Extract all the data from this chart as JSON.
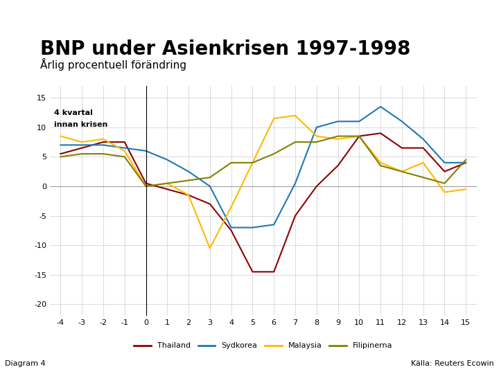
{
  "title": "BNP under Asienkrisen 1997-1998",
  "subtitle": "Årlig procentuell förändring",
  "annotation_line1": "4 kvartal",
  "annotation_line2": "innan krisen",
  "xlim": [
    -4.5,
    15.5
  ],
  "ylim": [
    -22,
    17
  ],
  "xticks": [
    -4,
    -3,
    -2,
    -1,
    0,
    1,
    2,
    3,
    4,
    5,
    6,
    7,
    8,
    9,
    10,
    11,
    12,
    13,
    14,
    15
  ],
  "yticks": [
    -20,
    -15,
    -10,
    -5,
    0,
    5,
    10,
    15
  ],
  "footer_bar_color": "#1a3a8a",
  "footer_left": "Diagram 4",
  "footer_right": "Källa: Reuters Ecowin",
  "logo_color": "#1a3a8a",
  "background_color": "#ffffff",
  "vline_x": 0,
  "legend_labels": [
    "Thailand",
    "Sydkorea",
    "Malaysia",
    "Filipinerna"
  ],
  "series": {
    "Thailand": {
      "color": "#8B0000",
      "x": [
        -4,
        -3,
        -2,
        -1,
        0,
        1,
        2,
        3,
        4,
        5,
        6,
        7,
        8,
        9,
        10,
        11,
        12,
        13,
        14,
        15
      ],
      "y": [
        5.5,
        6.5,
        7.5,
        7.5,
        0.5,
        -0.5,
        -1.5,
        -3.0,
        -7.5,
        -14.5,
        -14.5,
        -5.0,
        0.0,
        3.5,
        8.5,
        9.0,
        6.5,
        6.5,
        2.5,
        4.0
      ]
    },
    "Sydkorea": {
      "color": "#1F77B4",
      "x": [
        -4,
        -3,
        -2,
        -1,
        0,
        1,
        2,
        3,
        4,
        5,
        6,
        7,
        8,
        9,
        10,
        11,
        12,
        13,
        14,
        15
      ],
      "y": [
        7.0,
        7.0,
        7.0,
        6.5,
        6.0,
        4.5,
        2.5,
        0.0,
        -7.0,
        -7.0,
        -6.5,
        0.5,
        10.0,
        11.0,
        11.0,
        13.5,
        11.0,
        8.0,
        4.0,
        4.0
      ]
    },
    "Malaysia": {
      "color": "#FFB800",
      "x": [
        -4,
        -3,
        -2,
        -1,
        0,
        1,
        2,
        3,
        4,
        5,
        6,
        7,
        8,
        9,
        10,
        11,
        12,
        13,
        14,
        15
      ],
      "y": [
        8.5,
        7.5,
        8.0,
        6.0,
        0.0,
        0.5,
        -1.5,
        -10.5,
        -3.5,
        4.0,
        11.5,
        12.0,
        8.5,
        8.0,
        8.5,
        4.0,
        2.5,
        4.0,
        -1.0,
        -0.5
      ]
    },
    "Filipinerna": {
      "color": "#808000",
      "x": [
        -4,
        -3,
        -2,
        -1,
        0,
        1,
        2,
        3,
        4,
        5,
        6,
        7,
        8,
        9,
        10,
        11,
        12,
        13,
        14,
        15
      ],
      "y": [
        5.0,
        5.5,
        5.5,
        5.0,
        0.0,
        0.5,
        1.0,
        1.5,
        4.0,
        4.0,
        5.5,
        7.5,
        7.5,
        8.5,
        8.5,
        3.5,
        2.5,
        1.5,
        0.5,
        4.5
      ]
    }
  },
  "title_fontsize": 20,
  "subtitle_fontsize": 11,
  "tick_fontsize": 8,
  "legend_fontsize": 8,
  "footer_fontsize": 8,
  "annotation_fontsize": 8,
  "line_width": 1.5
}
